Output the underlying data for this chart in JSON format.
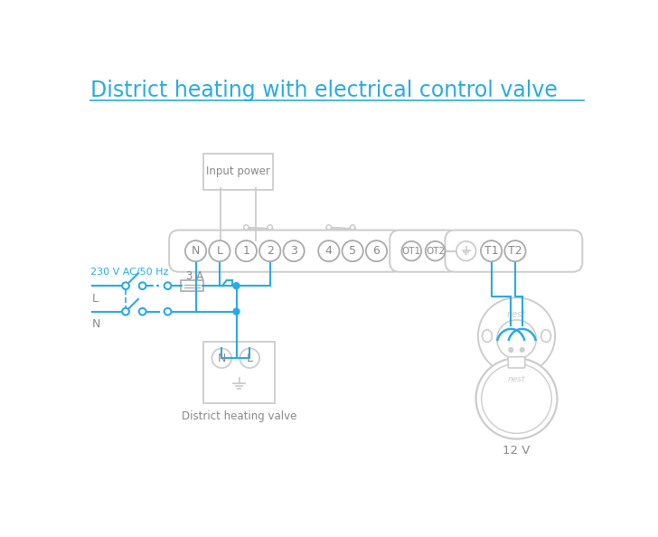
{
  "title": "District heating with electrical control valve",
  "title_color": "#29abe2",
  "bg_color": "#ffffff",
  "cyan": "#29abe2",
  "gray": "#aaaaaa",
  "lgray": "#cccccc",
  "dgray": "#888888",
  "label_230v": "230 V AC/50 Hz",
  "label_3a": "3 A",
  "label_L": "L",
  "label_N": "N",
  "label_input_power": "Input power",
  "label_district": "District heating valve",
  "label_12v": "12 V",
  "term_main": [
    "N",
    "L",
    "1",
    "2",
    "3",
    "4",
    "5",
    "6"
  ],
  "term_ot": [
    "OT1",
    "OT2"
  ],
  "term_right": [
    "T1",
    "T2"
  ]
}
